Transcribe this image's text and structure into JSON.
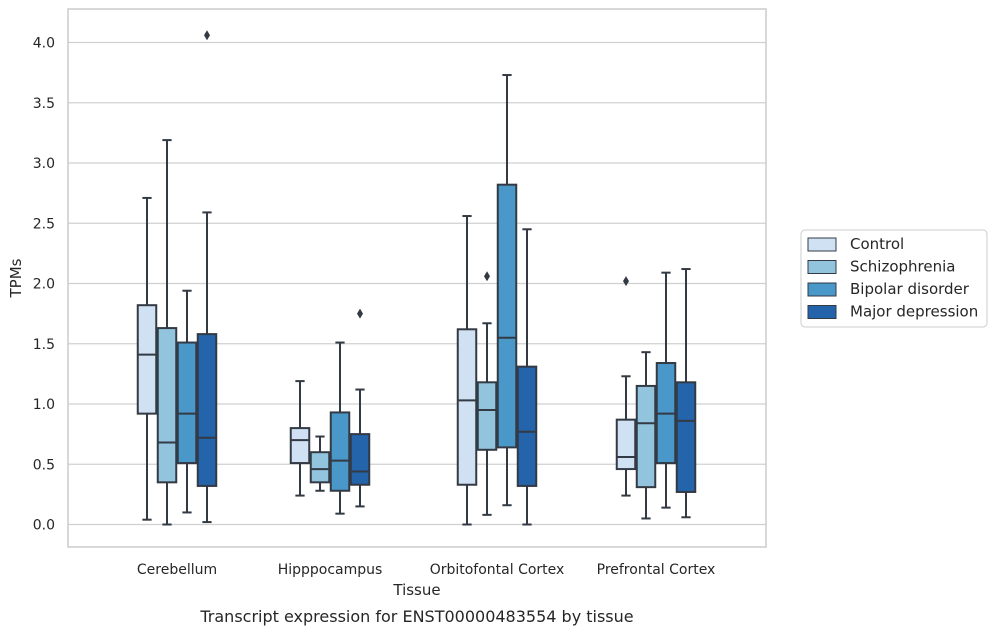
{
  "chart_data": {
    "type": "box",
    "title": "",
    "caption": "Transcript expression for ENST00000483554 by tissue",
    "xlabel": "Tissue",
    "ylabel": "TPMs",
    "ylim": [
      -0.19,
      4.28
    ],
    "yticks": [
      "0.0",
      "0.5",
      "1.0",
      "1.5",
      "2.0",
      "2.5",
      "3.0",
      "3.5",
      "4.0"
    ],
    "grid": "horizontal",
    "legend_position": "right",
    "categories": [
      "Cerebellum",
      "Hipppocampus",
      "Orbitofontal Cortex",
      "Prefrontal Cortex"
    ],
    "series": [
      {
        "name": "Control",
        "color": "#cfe1f2",
        "boxes": [
          {
            "whislo": 0.04,
            "q1": 0.92,
            "med": 1.41,
            "q3": 1.82,
            "whishi": 2.71,
            "fliers": []
          },
          {
            "whislo": 0.24,
            "q1": 0.51,
            "med": 0.7,
            "q3": 0.8,
            "whishi": 1.19,
            "fliers": []
          },
          {
            "whislo": 0.0,
            "q1": 0.33,
            "med": 1.03,
            "q3": 1.62,
            "whishi": 2.56,
            "fliers": []
          },
          {
            "whislo": 0.24,
            "q1": 0.46,
            "med": 0.56,
            "q3": 0.87,
            "whishi": 1.23,
            "fliers": [
              2.02
            ]
          }
        ]
      },
      {
        "name": "Schizophrenia",
        "color": "#93c4de",
        "boxes": [
          {
            "whislo": 0.0,
            "q1": 0.35,
            "med": 0.68,
            "q3": 1.63,
            "whishi": 3.19,
            "fliers": []
          },
          {
            "whislo": 0.28,
            "q1": 0.35,
            "med": 0.46,
            "q3": 0.6,
            "whishi": 0.73,
            "fliers": []
          },
          {
            "whislo": 0.08,
            "q1": 0.62,
            "med": 0.95,
            "q3": 1.18,
            "whishi": 1.67,
            "fliers": [
              2.06
            ]
          },
          {
            "whislo": 0.05,
            "q1": 0.31,
            "med": 0.84,
            "q3": 1.15,
            "whishi": 1.43,
            "fliers": []
          }
        ]
      },
      {
        "name": "Bipolar disorder",
        "color": "#4a98c9",
        "boxes": [
          {
            "whislo": 0.1,
            "q1": 0.51,
            "med": 0.92,
            "q3": 1.51,
            "whishi": 1.94,
            "fliers": []
          },
          {
            "whislo": 0.09,
            "q1": 0.28,
            "med": 0.53,
            "q3": 0.93,
            "whishi": 1.51,
            "fliers": []
          },
          {
            "whislo": 0.16,
            "q1": 0.64,
            "med": 1.55,
            "q3": 2.82,
            "whishi": 3.73,
            "fliers": []
          },
          {
            "whislo": 0.14,
            "q1": 0.51,
            "med": 0.92,
            "q3": 1.34,
            "whishi": 2.09,
            "fliers": []
          }
        ]
      },
      {
        "name": "Major depression",
        "color": "#2364aa",
        "boxes": [
          {
            "whislo": 0.02,
            "q1": 0.32,
            "med": 0.72,
            "q3": 1.58,
            "whishi": 2.59,
            "fliers": [
              4.06
            ]
          },
          {
            "whislo": 0.15,
            "q1": 0.33,
            "med": 0.44,
            "q3": 0.75,
            "whishi": 1.12,
            "fliers": [
              1.75
            ]
          },
          {
            "whislo": 0.0,
            "q1": 0.32,
            "med": 0.77,
            "q3": 1.31,
            "whishi": 2.45,
            "fliers": []
          },
          {
            "whislo": 0.06,
            "q1": 0.27,
            "med": 0.86,
            "q3": 1.18,
            "whishi": 2.12,
            "fliers": []
          }
        ]
      }
    ]
  }
}
